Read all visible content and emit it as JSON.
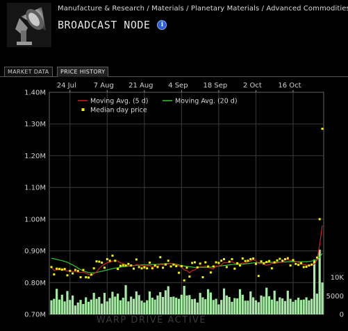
{
  "breadcrumb": "Manufacture & Research / Materials / Planetary Materials / Advanced Commodities /",
  "item": {
    "name": "BROADCAST NODE",
    "icon": "broadcast-node-icon",
    "info_icon": "info-icon"
  },
  "tabs": [
    {
      "label": "MARKET DATA",
      "active": false
    },
    {
      "label": "PRICE HISTORY",
      "active": true
    }
  ],
  "watermark": "WARP DRIVE ACTIVE",
  "chart_data": {
    "type": "line",
    "x_ticks": [
      "24 Jul",
      "7 Aug",
      "21 Aug",
      "4 Sep",
      "18 Sep",
      "2 Oct",
      "16 Oct"
    ],
    "y_ticks": [
      "1.40M",
      "1.30M",
      "1.20M",
      "1.10M",
      "1.00M",
      "0.90M",
      "0.80M",
      "0.70M"
    ],
    "ylim": [
      0.7,
      1.4
    ],
    "volume_ticks": [
      "10K",
      "5000",
      "0"
    ],
    "volume_lim": [
      0,
      15000
    ],
    "grid": true,
    "legend_position": "top",
    "legend": [
      {
        "label": "Moving Avg. (5 d)",
        "color": "#d42020"
      },
      {
        "label": "Moving Avg. (20 d)",
        "color": "#2ec82e"
      },
      {
        "label": "Median day price",
        "color": "#f2f200"
      }
    ],
    "series": [
      {
        "name": "Median day price",
        "values": [
          0.849,
          0.826,
          0.844,
          0.843,
          0.841,
          0.843,
          0.823,
          0.837,
          0.829,
          0.84,
          0.837,
          0.817,
          0.84,
          0.817,
          0.816,
          0.825,
          0.845,
          0.867,
          0.866,
          0.863,
          0.847,
          0.874,
          0.869,
          0.885,
          0.869,
          0.843,
          0.853,
          0.855,
          0.854,
          0.859,
          0.854,
          0.844,
          0.873,
          0.849,
          0.845,
          0.848,
          0.845,
          0.863,
          0.845,
          0.854,
          0.849,
          0.88,
          0.847,
          0.857,
          0.869,
          0.851,
          0.857,
          0.852,
          0.831,
          0.852,
          0.807,
          0.847,
          0.819,
          0.862,
          0.864,
          0.848,
          0.86,
          0.817,
          0.864,
          0.851,
          0.832,
          0.851,
          0.864,
          0.862,
          0.869,
          0.874,
          0.849,
          0.866,
          0.874,
          0.844,
          0.861,
          0.854,
          0.876,
          0.868,
          0.869,
          0.874,
          0.876,
          0.859,
          0.821,
          0.867,
          0.861,
          0.865,
          0.868,
          0.845,
          0.864,
          0.87,
          0.875,
          0.869,
          0.874,
          0.877,
          0.854,
          0.871,
          0.859,
          0.856,
          0.861,
          0.849,
          0.85,
          0.854,
          0.857,
          0.865,
          0.879,
          1.0,
          1.285
        ]
      },
      {
        "name": "Moving Avg. (5 d)",
        "values": [
          0.849,
          0.838,
          0.84,
          0.841,
          0.841,
          0.839,
          0.836,
          0.838,
          0.835,
          0.834,
          0.833,
          0.832,
          0.833,
          0.83,
          0.826,
          0.823,
          0.828,
          0.834,
          0.844,
          0.853,
          0.858,
          0.863,
          0.864,
          0.868,
          0.869,
          0.868,
          0.862,
          0.861,
          0.855,
          0.853,
          0.855,
          0.853,
          0.857,
          0.856,
          0.853,
          0.852,
          0.852,
          0.854,
          0.849,
          0.851,
          0.852,
          0.858,
          0.855,
          0.857,
          0.859,
          0.861,
          0.856,
          0.857,
          0.852,
          0.849,
          0.84,
          0.838,
          0.831,
          0.838,
          0.84,
          0.848,
          0.851,
          0.85,
          0.852,
          0.848,
          0.845,
          0.843,
          0.852,
          0.852,
          0.856,
          0.864,
          0.863,
          0.864,
          0.866,
          0.861,
          0.859,
          0.86,
          0.862,
          0.86,
          0.866,
          0.868,
          0.873,
          0.869,
          0.86,
          0.861,
          0.857,
          0.855,
          0.856,
          0.861,
          0.861,
          0.862,
          0.864,
          0.864,
          0.871,
          0.873,
          0.869,
          0.869,
          0.867,
          0.864,
          0.859,
          0.857,
          0.855,
          0.854,
          0.854,
          0.859,
          0.871,
          0.92,
          0.98
        ]
      },
      {
        "name": "Moving Avg. (20 d)",
        "values": [
          0.877,
          0.875,
          0.873,
          0.871,
          0.869,
          0.867,
          0.864,
          0.86,
          0.856,
          0.851,
          0.846,
          0.841,
          0.837,
          0.834,
          0.832,
          0.831,
          0.831,
          0.832,
          0.834,
          0.836,
          0.838,
          0.84,
          0.842,
          0.844,
          0.846,
          0.847,
          0.849,
          0.85,
          0.851,
          0.852,
          0.853,
          0.854,
          0.855,
          0.855,
          0.856,
          0.856,
          0.856,
          0.856,
          0.857,
          0.857,
          0.858,
          0.859,
          0.859,
          0.86,
          0.86,
          0.86,
          0.859,
          0.858,
          0.856,
          0.854,
          0.852,
          0.851,
          0.85,
          0.849,
          0.848,
          0.848,
          0.848,
          0.848,
          0.848,
          0.848,
          0.849,
          0.85,
          0.851,
          0.852,
          0.853,
          0.854,
          0.855,
          0.856,
          0.857,
          0.857,
          0.857,
          0.858,
          0.858,
          0.859,
          0.86,
          0.861,
          0.862,
          0.863,
          0.863,
          0.863,
          0.863,
          0.863,
          0.864,
          0.864,
          0.864,
          0.864,
          0.865,
          0.865,
          0.865,
          0.866,
          0.866,
          0.866,
          0.866,
          0.866,
          0.866,
          0.866,
          0.866,
          0.867,
          0.868,
          0.87,
          0.872,
          0.88,
          0.892
        ]
      },
      {
        "name": "Volume",
        "values": [
          3800,
          4200,
          6900,
          4000,
          5300,
          3500,
          6300,
          3900,
          5100,
          2400,
          3200,
          3900,
          2800,
          4600,
          3400,
          4000,
          5800,
          4200,
          4700,
          2900,
          5800,
          3500,
          4400,
          6100,
          4800,
          5600,
          3800,
          4500,
          7900,
          3500,
          4800,
          4200,
          6200,
          5200,
          3700,
          3200,
          3800,
          6200,
          4500,
          4000,
          5100,
          6000,
          4700,
          6500,
          7600,
          4700,
          4800,
          4500,
          4200,
          5300,
          7700,
          5100,
          5200,
          4100,
          4200,
          3200,
          5800,
          4600,
          4100,
          6800,
          5900,
          3900,
          4200,
          2700,
          3900,
          7000,
          5100,
          4700,
          3400,
          4400,
          4300,
          6800,
          5300,
          3700,
          3700,
          6200,
          4600,
          3800,
          3300,
          5100,
          4800,
          7200,
          4900,
          4000,
          6400,
          3600,
          4600,
          4300,
          3600,
          6400,
          4200,
          3400,
          3900,
          4500,
          3900,
          4000,
          4600,
          3800,
          4200,
          14800,
          5600,
          17500,
          8600
        ]
      }
    ]
  }
}
